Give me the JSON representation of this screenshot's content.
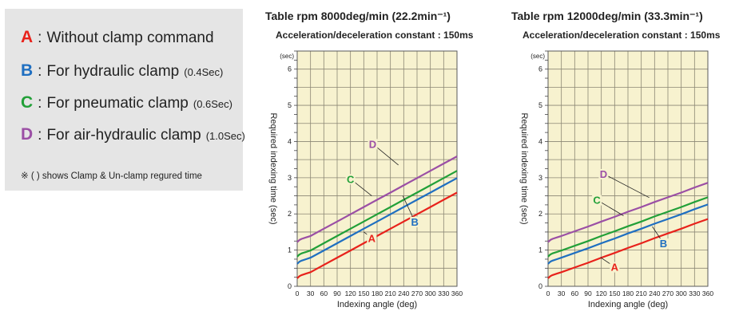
{
  "legend": {
    "items": [
      {
        "letter": "A",
        "colon": ":",
        "text": "Without clamp command",
        "note": "",
        "color": "#e8221b"
      },
      {
        "letter": "B",
        "colon": ":",
        "text": "For hydraulic clamp",
        "note": "(0.4Sec)",
        "color": "#1f6fc1"
      },
      {
        "letter": "C",
        "colon": ":",
        "text": "For pneumatic clamp",
        "note": "(0.6Sec)",
        "color": "#22a038"
      },
      {
        "letter": "D",
        "colon": ":",
        "text": "For air-hydraulic clamp",
        "note": "(1.0Sec)",
        "color": "#9b4fa5"
      }
    ],
    "footnote": "※ (  ) shows Clamp & Un-clamp regured time"
  },
  "chart_data": [
    {
      "type": "line",
      "title": "Table rpm 8000deg/min (22.2min⁻¹)",
      "subtitle": "Acceleration/deceleration constant : 150ms",
      "xlabel": "Indexing angle (deg)",
      "ylabel": "Required indexing time (sec)",
      "y_unit": "(sec)",
      "xlim": [
        0,
        360
      ],
      "ylim": [
        0,
        6.5
      ],
      "xticks": [
        "0",
        "30",
        "60",
        "90",
        "120",
        "150",
        "180",
        "210",
        "240",
        "270",
        "300",
        "330",
        "360"
      ],
      "yticks": [
        "0",
        "1",
        "2",
        "3",
        "4",
        "5",
        "6"
      ],
      "grid": true,
      "background": "#f7f2cf",
      "series": [
        {
          "name": "A",
          "color": "#e8221b",
          "x": [
            0,
            5,
            10,
            20,
            30,
            60,
            90,
            120,
            150,
            180,
            210,
            240,
            270,
            300,
            330,
            360
          ],
          "y": [
            0.22,
            0.28,
            0.31,
            0.35,
            0.39,
            0.59,
            0.79,
            0.99,
            1.19,
            1.39,
            1.59,
            1.79,
            1.99,
            2.19,
            2.39,
            2.59
          ]
        },
        {
          "name": "B",
          "color": "#1f6fc1",
          "x": [
            0,
            5,
            10,
            20,
            30,
            60,
            90,
            120,
            150,
            180,
            210,
            240,
            270,
            300,
            330,
            360
          ],
          "y": [
            0.62,
            0.68,
            0.71,
            0.75,
            0.79,
            0.99,
            1.19,
            1.39,
            1.59,
            1.79,
            1.99,
            2.19,
            2.39,
            2.59,
            2.79,
            2.99
          ]
        },
        {
          "name": "C",
          "color": "#22a038",
          "x": [
            0,
            5,
            10,
            20,
            30,
            60,
            90,
            120,
            150,
            180,
            210,
            240,
            270,
            300,
            330,
            360
          ],
          "y": [
            0.82,
            0.88,
            0.91,
            0.95,
            0.99,
            1.19,
            1.39,
            1.59,
            1.79,
            1.99,
            2.19,
            2.39,
            2.59,
            2.79,
            2.99,
            3.19
          ]
        },
        {
          "name": "D",
          "color": "#9b4fa5",
          "x": [
            0,
            5,
            10,
            20,
            30,
            60,
            90,
            120,
            150,
            180,
            210,
            240,
            270,
            300,
            330,
            360
          ],
          "y": [
            1.22,
            1.28,
            1.31,
            1.35,
            1.39,
            1.59,
            1.79,
            1.99,
            2.19,
            2.39,
            2.59,
            2.79,
            2.99,
            3.19,
            3.39,
            3.59
          ]
        }
      ],
      "annotations": [
        {
          "series": "A",
          "label": "A",
          "label_xy": [
            168,
            1.25
          ],
          "point_xy": [
            150,
            1.5
          ]
        },
        {
          "series": "B",
          "label": "B",
          "label_xy": [
            265,
            1.7
          ],
          "point_xy": [
            238,
            2.5
          ]
        },
        {
          "series": "C",
          "label": "C",
          "label_xy": [
            120,
            2.88
          ],
          "point_xy": [
            168,
            2.5
          ]
        },
        {
          "series": "D",
          "label": "D",
          "label_xy": [
            170,
            3.85
          ],
          "point_xy": [
            228,
            3.35
          ]
        }
      ]
    },
    {
      "type": "line",
      "title": "Table rpm 12000deg/min (33.3min⁻¹)",
      "subtitle": "Acceleration/deceleration constant : 150ms",
      "xlabel": "Indexing angle (deg)",
      "ylabel": "Required indexing time (sec)",
      "y_unit": "(sec)",
      "xlim": [
        0,
        360
      ],
      "ylim": [
        0,
        6.5
      ],
      "xticks": [
        "0",
        "30",
        "60",
        "90",
        "120",
        "150",
        "180",
        "210",
        "240",
        "270",
        "300",
        "330",
        "360"
      ],
      "yticks": [
        "0",
        "1",
        "2",
        "3",
        "4",
        "5",
        "6"
      ],
      "grid": true,
      "background": "#f7f2cf",
      "series": [
        {
          "name": "A",
          "color": "#e8221b",
          "x": [
            0,
            5,
            10,
            20,
            30,
            60,
            90,
            120,
            150,
            180,
            210,
            240,
            270,
            300,
            330,
            360
          ],
          "y": [
            0.22,
            0.28,
            0.31,
            0.35,
            0.39,
            0.52,
            0.65,
            0.79,
            0.92,
            1.06,
            1.19,
            1.33,
            1.46,
            1.59,
            1.73,
            1.86
          ]
        },
        {
          "name": "B",
          "color": "#1f6fc1",
          "x": [
            0,
            5,
            10,
            20,
            30,
            60,
            90,
            120,
            150,
            180,
            210,
            240,
            270,
            300,
            330,
            360
          ],
          "y": [
            0.62,
            0.68,
            0.71,
            0.75,
            0.79,
            0.92,
            1.05,
            1.19,
            1.32,
            1.46,
            1.59,
            1.73,
            1.86,
            1.99,
            2.13,
            2.26
          ]
        },
        {
          "name": "C",
          "color": "#22a038",
          "x": [
            0,
            5,
            10,
            20,
            30,
            60,
            90,
            120,
            150,
            180,
            210,
            240,
            270,
            300,
            330,
            360
          ],
          "y": [
            0.82,
            0.88,
            0.91,
            0.95,
            0.99,
            1.12,
            1.25,
            1.39,
            1.52,
            1.66,
            1.79,
            1.93,
            2.06,
            2.19,
            2.33,
            2.46
          ]
        },
        {
          "name": "D",
          "color": "#9b4fa5",
          "x": [
            0,
            5,
            10,
            20,
            30,
            60,
            90,
            120,
            150,
            180,
            210,
            240,
            270,
            300,
            330,
            360
          ],
          "y": [
            1.22,
            1.28,
            1.31,
            1.35,
            1.39,
            1.52,
            1.65,
            1.79,
            1.92,
            2.06,
            2.19,
            2.33,
            2.46,
            2.59,
            2.73,
            2.86
          ]
        }
      ],
      "annotations": [
        {
          "series": "A",
          "label": "A",
          "label_xy": [
            150,
            0.45
          ],
          "point_xy": [
            118,
            0.8
          ]
        },
        {
          "series": "B",
          "label": "B",
          "label_xy": [
            260,
            1.1
          ],
          "point_xy": [
            235,
            1.65
          ]
        },
        {
          "series": "C",
          "label": "C",
          "label_xy": [
            110,
            2.3
          ],
          "point_xy": [
            170,
            1.95
          ]
        },
        {
          "series": "D",
          "label": "D",
          "label_xy": [
            125,
            3.02
          ],
          "point_xy": [
            228,
            2.45
          ]
        }
      ]
    }
  ]
}
